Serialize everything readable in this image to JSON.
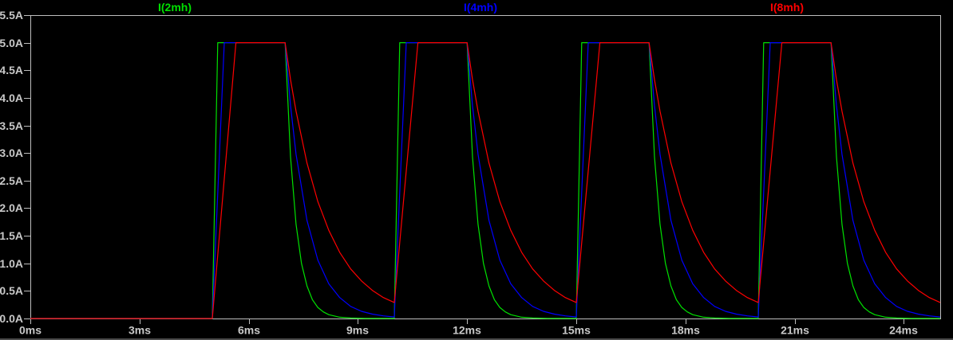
{
  "window": {
    "background_color": "#000000",
    "bottom_edge_color": "#4a4a4a"
  },
  "legend": {
    "position": "top",
    "items": [
      {
        "label": "I(2mh)",
        "color": "#00e000"
      },
      {
        "label": "I(4mh)",
        "color": "#0000ff"
      },
      {
        "label": "I(8mh)",
        "color": "#ff0000"
      }
    ]
  },
  "chart_data": {
    "type": "line",
    "title": "",
    "xlabel": "",
    "ylabel": "",
    "grid": false,
    "background": "#000000",
    "axis_line_color": "#bebebe",
    "axis_text_color": "#c8c8c8",
    "xlim": [
      0,
      25
    ],
    "ylim": [
      0,
      5.5
    ],
    "x_unit": "ms",
    "y_unit": "A",
    "x_ticks": [
      {
        "value": 0,
        "label": "0ms"
      },
      {
        "value": 3,
        "label": "3ms"
      },
      {
        "value": 6,
        "label": "6ms"
      },
      {
        "value": 9,
        "label": "9ms"
      },
      {
        "value": 12,
        "label": "12ms"
      },
      {
        "value": 15,
        "label": "15ms"
      },
      {
        "value": 18,
        "label": "18ms"
      },
      {
        "value": 21,
        "label": "21ms"
      },
      {
        "value": 24,
        "label": "24ms"
      }
    ],
    "y_ticks": [
      {
        "value": 0.0,
        "label": "0.0A"
      },
      {
        "value": 0.5,
        "label": "0.5A"
      },
      {
        "value": 1.0,
        "label": "1.0A"
      },
      {
        "value": 1.5,
        "label": "1.5A"
      },
      {
        "value": 2.0,
        "label": "2.0A"
      },
      {
        "value": 2.5,
        "label": "2.5A"
      },
      {
        "value": 3.0,
        "label": "3.0A"
      },
      {
        "value": 3.5,
        "label": "3.5A"
      },
      {
        "value": 4.0,
        "label": "4.0A"
      },
      {
        "value": 4.5,
        "label": "4.5A"
      },
      {
        "value": 5.0,
        "label": "5.0A"
      },
      {
        "value": 5.5,
        "label": "5.5A"
      }
    ],
    "pulse_description": {
      "amplitude_A": 5.0,
      "pulse_on_ms": [
        5,
        10,
        15,
        20
      ],
      "pulse_off_ms": [
        7,
        12,
        17,
        22
      ],
      "decay_tau_ms": {
        "I(2mh)": 0.28,
        "I(4mh)": 0.58,
        "I(8mh)": 1.05
      },
      "rise_duration_ms": {
        "I(2mh)": 0.15,
        "I(4mh)": 0.33,
        "I(8mh)": 0.65
      }
    },
    "series": [
      {
        "name": "I(2mh)",
        "color": "#00e000",
        "points": [
          [
            0,
            0
          ],
          [
            5,
            0
          ],
          [
            5.15,
            5
          ],
          [
            7,
            5
          ],
          [
            7.15,
            2.93
          ],
          [
            7.3,
            1.71
          ],
          [
            7.45,
            1.0
          ],
          [
            7.6,
            0.59
          ],
          [
            7.75,
            0.34
          ],
          [
            7.9,
            0.2
          ],
          [
            8.05,
            0.12
          ],
          [
            8.2,
            0.07
          ],
          [
            8.5,
            0.023
          ],
          [
            8.8,
            0.008
          ],
          [
            9.2,
            0.002
          ],
          [
            10,
            0.001
          ],
          [
            10.15,
            5
          ],
          [
            12,
            5
          ],
          [
            12.15,
            2.93
          ],
          [
            12.3,
            1.71
          ],
          [
            12.45,
            1.0
          ],
          [
            12.6,
            0.59
          ],
          [
            12.75,
            0.34
          ],
          [
            12.9,
            0.2
          ],
          [
            13.05,
            0.12
          ],
          [
            13.2,
            0.07
          ],
          [
            13.5,
            0.023
          ],
          [
            13.8,
            0.008
          ],
          [
            14.2,
            0.002
          ],
          [
            15,
            0.001
          ],
          [
            15.15,
            5
          ],
          [
            17,
            5
          ],
          [
            17.15,
            2.93
          ],
          [
            17.3,
            1.71
          ],
          [
            17.45,
            1.0
          ],
          [
            17.6,
            0.59
          ],
          [
            17.75,
            0.34
          ],
          [
            17.9,
            0.2
          ],
          [
            18.05,
            0.12
          ],
          [
            18.2,
            0.07
          ],
          [
            18.5,
            0.023
          ],
          [
            18.8,
            0.008
          ],
          [
            19.2,
            0.002
          ],
          [
            20,
            0.001
          ],
          [
            20.15,
            5
          ],
          [
            22,
            5
          ],
          [
            22.15,
            2.93
          ],
          [
            22.3,
            1.71
          ],
          [
            22.45,
            1.0
          ],
          [
            22.6,
            0.59
          ],
          [
            22.75,
            0.34
          ],
          [
            22.9,
            0.2
          ],
          [
            23.05,
            0.12
          ],
          [
            23.2,
            0.07
          ],
          [
            23.5,
            0.023
          ],
          [
            23.8,
            0.008
          ],
          [
            24.2,
            0.002
          ],
          [
            25,
            0.001
          ]
        ]
      },
      {
        "name": "I(4mh)",
        "color": "#0000ff",
        "points": [
          [
            0,
            0
          ],
          [
            5,
            0
          ],
          [
            5.33,
            5
          ],
          [
            7,
            5
          ],
          [
            7.15,
            3.86
          ],
          [
            7.3,
            2.98
          ],
          [
            7.6,
            1.78
          ],
          [
            7.9,
            1.06
          ],
          [
            8.2,
            0.63
          ],
          [
            8.5,
            0.38
          ],
          [
            8.8,
            0.22
          ],
          [
            9.1,
            0.13
          ],
          [
            9.4,
            0.08
          ],
          [
            9.7,
            0.047
          ],
          [
            10,
            0.028
          ],
          [
            10.33,
            5
          ],
          [
            12,
            5
          ],
          [
            12.15,
            3.86
          ],
          [
            12.3,
            2.98
          ],
          [
            12.6,
            1.78
          ],
          [
            12.9,
            1.06
          ],
          [
            13.2,
            0.63
          ],
          [
            13.5,
            0.38
          ],
          [
            13.8,
            0.22
          ],
          [
            14.1,
            0.13
          ],
          [
            14.4,
            0.08
          ],
          [
            14.7,
            0.047
          ],
          [
            15,
            0.028
          ],
          [
            15.33,
            5
          ],
          [
            17,
            5
          ],
          [
            17.15,
            3.86
          ],
          [
            17.3,
            2.98
          ],
          [
            17.6,
            1.78
          ],
          [
            17.9,
            1.06
          ],
          [
            18.2,
            0.63
          ],
          [
            18.5,
            0.38
          ],
          [
            18.8,
            0.22
          ],
          [
            19.1,
            0.13
          ],
          [
            19.4,
            0.08
          ],
          [
            19.7,
            0.047
          ],
          [
            20,
            0.028
          ],
          [
            20.33,
            5
          ],
          [
            22,
            5
          ],
          [
            22.15,
            3.86
          ],
          [
            22.3,
            2.98
          ],
          [
            22.6,
            1.78
          ],
          [
            22.9,
            1.06
          ],
          [
            23.2,
            0.63
          ],
          [
            23.5,
            0.38
          ],
          [
            23.8,
            0.22
          ],
          [
            24.1,
            0.13
          ],
          [
            24.4,
            0.08
          ],
          [
            24.7,
            0.047
          ],
          [
            25,
            0.028
          ]
        ]
      },
      {
        "name": "I(8mh)",
        "color": "#ff0000",
        "points": [
          [
            0,
            0
          ],
          [
            5,
            0
          ],
          [
            5.65,
            5
          ],
          [
            7,
            5
          ],
          [
            7.15,
            4.33
          ],
          [
            7.3,
            3.76
          ],
          [
            7.6,
            2.82
          ],
          [
            7.9,
            2.12
          ],
          [
            8.2,
            1.6
          ],
          [
            8.5,
            1.2
          ],
          [
            8.8,
            0.9
          ],
          [
            9.1,
            0.68
          ],
          [
            9.4,
            0.51
          ],
          [
            9.7,
            0.38
          ],
          [
            10,
            0.29
          ],
          [
            10.65,
            5
          ],
          [
            12,
            5
          ],
          [
            12.15,
            4.33
          ],
          [
            12.3,
            3.76
          ],
          [
            12.6,
            2.82
          ],
          [
            12.9,
            2.12
          ],
          [
            13.2,
            1.6
          ],
          [
            13.5,
            1.2
          ],
          [
            13.8,
            0.9
          ],
          [
            14.1,
            0.68
          ],
          [
            14.4,
            0.51
          ],
          [
            14.7,
            0.38
          ],
          [
            15,
            0.29
          ],
          [
            15.65,
            5
          ],
          [
            17,
            5
          ],
          [
            17.15,
            4.33
          ],
          [
            17.3,
            3.76
          ],
          [
            17.6,
            2.82
          ],
          [
            17.9,
            2.12
          ],
          [
            18.2,
            1.6
          ],
          [
            18.5,
            1.2
          ],
          [
            18.8,
            0.9
          ],
          [
            19.1,
            0.68
          ],
          [
            19.4,
            0.51
          ],
          [
            19.7,
            0.38
          ],
          [
            20,
            0.29
          ],
          [
            20.65,
            5
          ],
          [
            22,
            5
          ],
          [
            22.15,
            4.33
          ],
          [
            22.3,
            3.76
          ],
          [
            22.6,
            2.82
          ],
          [
            22.9,
            2.12
          ],
          [
            23.2,
            1.6
          ],
          [
            23.5,
            1.2
          ],
          [
            23.8,
            0.9
          ],
          [
            24.1,
            0.68
          ],
          [
            24.4,
            0.51
          ],
          [
            24.7,
            0.38
          ],
          [
            25,
            0.29
          ]
        ]
      }
    ]
  }
}
